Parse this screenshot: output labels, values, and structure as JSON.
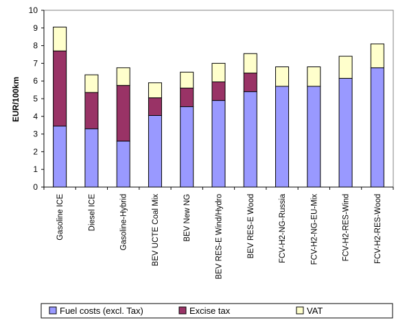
{
  "chart_data": {
    "type": "bar",
    "stacked": true,
    "ylabel": "EUR/100km",
    "ylim": [
      0,
      10
    ],
    "yticks": [
      0,
      1,
      2,
      3,
      4,
      5,
      6,
      7,
      8,
      9,
      10
    ],
    "grid": false,
    "legend_position": "bottom",
    "categories": [
      "Gasoline ICE",
      "Diesel ICE",
      "Gasoline-Hybrid",
      "BEV UCTE Coal Mix",
      "BEV New NG",
      "BEV RES-E Wind/Hydro",
      "BEV RES-E Wood",
      "FCV-H2-NG-Russia",
      "FCV-H2-NG-EU-Mix",
      "FCV-H2-RES-Wind",
      "FCV-H2-RES-Wood"
    ],
    "series": [
      {
        "name": "Fuel costs (excl. Tax)",
        "color": "#9999ff",
        "values": [
          3.45,
          3.3,
          2.6,
          4.05,
          4.55,
          4.9,
          5.4,
          5.7,
          5.7,
          6.15,
          6.75
        ]
      },
      {
        "name": "Excise tax",
        "color": "#993366",
        "values": [
          4.25,
          2.05,
          3.15,
          1.0,
          1.05,
          1.05,
          1.05,
          0,
          0,
          0,
          0
        ]
      },
      {
        "name": "VAT",
        "color": "#ffffcc",
        "values": [
          1.35,
          1.0,
          1.0,
          0.85,
          0.9,
          1.05,
          1.1,
          1.1,
          1.1,
          1.25,
          1.35
        ]
      }
    ]
  }
}
